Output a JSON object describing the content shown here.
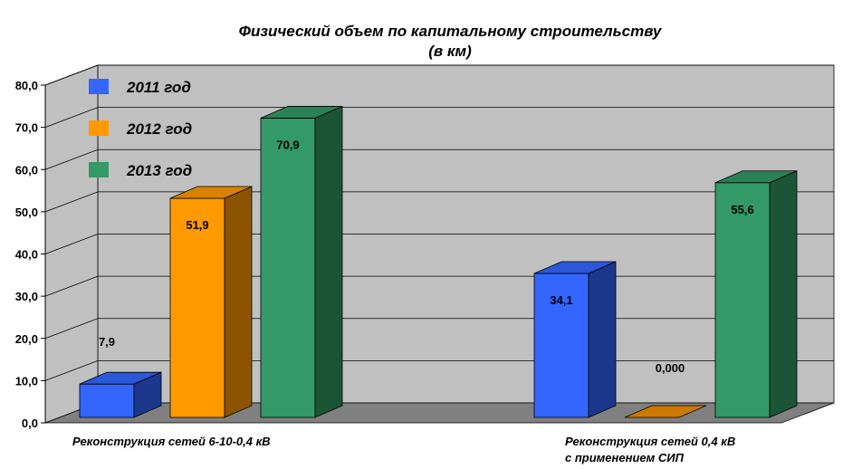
{
  "chart_data": {
    "type": "bar",
    "title": "Физический объем по капитальному строительству",
    "subtitle": "(в км)",
    "categories": [
      [
        "Реконструкция сетей 6-10-0,4 кВ"
      ],
      [
        "Реконструкция сетей 0,4 кВ",
        "с применением СИП"
      ]
    ],
    "series": [
      {
        "name": "2011 год",
        "values": [
          7.9,
          34.1
        ],
        "labels": [
          "7,9",
          "34,1"
        ],
        "color": "#3366ff"
      },
      {
        "name": "2012 год",
        "values": [
          51.9,
          0.0
        ],
        "labels": [
          "51,9",
          "0,000"
        ],
        "color": "#ff9900"
      },
      {
        "name": "2013 год",
        "values": [
          70.9,
          55.6
        ],
        "labels": [
          "70,9",
          "55,6"
        ],
        "color": "#339966"
      }
    ],
    "ylim": [
      0,
      80
    ],
    "yticks": [
      0,
      10,
      20,
      30,
      40,
      50,
      60,
      70,
      80
    ],
    "ytick_labels": [
      "0,0",
      "10,0",
      "20,0",
      "30,0",
      "40,0",
      "50,0",
      "60,0",
      "70,0",
      "80,0"
    ],
    "grid": true,
    "legend_position": "top-left",
    "wall_color": "#c0c0c0",
    "floor_color": "#808080"
  }
}
